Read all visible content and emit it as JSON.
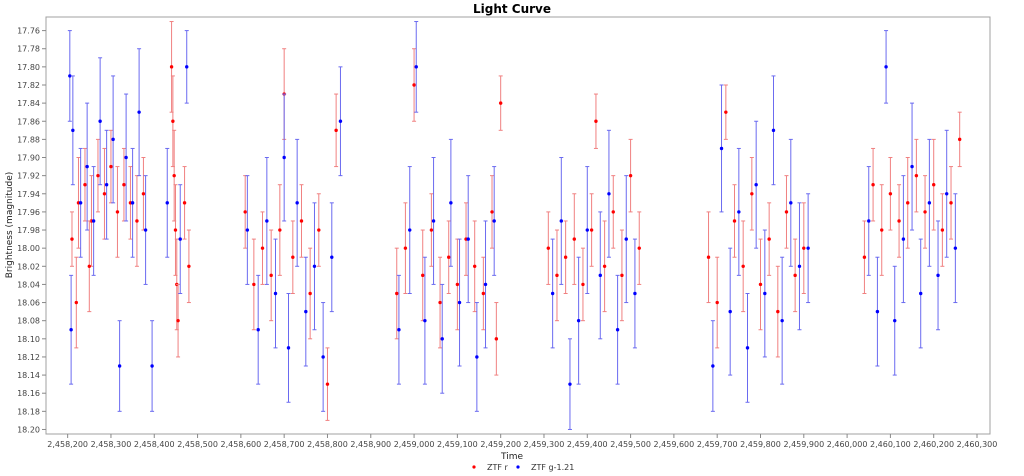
{
  "chart_data": {
    "type": "scatter",
    "title": "Light Curve",
    "xlabel": "Time",
    "ylabel": "Brightness (magnitude)",
    "xlim": [
      2458150,
      2460330
    ],
    "ylim": [
      18.205,
      17.745
    ],
    "y_inverted": true,
    "x_ticks": [
      2458200,
      2458300,
      2458400,
      2458500,
      2458600,
      2458700,
      2458800,
      2458900,
      2459000,
      2459100,
      2459200,
      2459300,
      2459400,
      2459500,
      2459600,
      2459700,
      2459800,
      2459900,
      2460000,
      2460100,
      2460200,
      2460300
    ],
    "x_tick_labels": [
      "2,458,200",
      "2,458,300",
      "2,458,400",
      "2,458,500",
      "2,458,600",
      "2,458,700",
      "2,458,800",
      "2,458,900",
      "2,459,000",
      "2,459,100",
      "2,459,200",
      "2,459,300",
      "2,459,400",
      "2,459,500",
      "2,459,600",
      "2,459,700",
      "2,459,800",
      "2,459,900",
      "2,460,000",
      "2,460,100",
      "2,460,200",
      "2,460,300"
    ],
    "y_ticks": [
      17.76,
      17.78,
      17.8,
      17.82,
      17.84,
      17.86,
      17.88,
      17.9,
      17.92,
      17.94,
      17.96,
      17.98,
      18.0,
      18.02,
      18.04,
      18.06,
      18.08,
      18.1,
      18.12,
      18.14,
      18.16,
      18.18,
      18.2
    ],
    "y_tick_labels": [
      "17.76",
      "17.78",
      "17.80",
      "17.82",
      "17.84",
      "17.86",
      "17.88",
      "17.90",
      "17.92",
      "17.94",
      "17.96",
      "17.98",
      "18.00",
      "18.02",
      "18.04",
      "18.06",
      "18.08",
      "18.10",
      "18.12",
      "18.14",
      "18.16",
      "18.18",
      "18.20"
    ],
    "grid": false,
    "legend_position": "bottom-center",
    "series": [
      {
        "name": "ZTF r",
        "color": "#ff0000",
        "errorbar_color": "#f08080",
        "points": [
          {
            "x": 2458210,
            "y": 17.99,
            "err": 0.03
          },
          {
            "x": 2458225,
            "y": 17.95,
            "err": 0.05
          },
          {
            "x": 2458240,
            "y": 17.93,
            "err": 0.04
          },
          {
            "x": 2458255,
            "y": 17.97,
            "err": 0.05
          },
          {
            "x": 2458270,
            "y": 17.92,
            "err": 0.04
          },
          {
            "x": 2458285,
            "y": 17.94,
            "err": 0.05
          },
          {
            "x": 2458300,
            "y": 17.91,
            "err": 0.04
          },
          {
            "x": 2458315,
            "y": 17.96,
            "err": 0.05
          },
          {
            "x": 2458330,
            "y": 17.93,
            "err": 0.04
          },
          {
            "x": 2458345,
            "y": 17.95,
            "err": 0.04
          },
          {
            "x": 2458360,
            "y": 17.97,
            "err": 0.05
          },
          {
            "x": 2458375,
            "y": 17.94,
            "err": 0.04
          },
          {
            "x": 2458220,
            "y": 18.06,
            "err": 0.05
          },
          {
            "x": 2458250,
            "y": 18.02,
            "err": 0.05
          },
          {
            "x": 2458440,
            "y": 17.8,
            "err": 0.05
          },
          {
            "x": 2458443,
            "y": 17.86,
            "err": 0.05
          },
          {
            "x": 2458446,
            "y": 17.92,
            "err": 0.05
          },
          {
            "x": 2458449,
            "y": 17.98,
            "err": 0.05
          },
          {
            "x": 2458452,
            "y": 18.04,
            "err": 0.05
          },
          {
            "x": 2458455,
            "y": 18.08,
            "err": 0.04
          },
          {
            "x": 2458470,
            "y": 17.95,
            "err": 0.04
          },
          {
            "x": 2458480,
            "y": 18.02,
            "err": 0.04
          },
          {
            "x": 2458610,
            "y": 17.96,
            "err": 0.04
          },
          {
            "x": 2458630,
            "y": 18.04,
            "err": 0.05
          },
          {
            "x": 2458650,
            "y": 18.0,
            "err": 0.04
          },
          {
            "x": 2458670,
            "y": 18.03,
            "err": 0.05
          },
          {
            "x": 2458690,
            "y": 17.98,
            "err": 0.05
          },
          {
            "x": 2458700,
            "y": 17.83,
            "err": 0.05
          },
          {
            "x": 2458720,
            "y": 18.01,
            "err": 0.04
          },
          {
            "x": 2458740,
            "y": 17.97,
            "err": 0.04
          },
          {
            "x": 2458760,
            "y": 18.05,
            "err": 0.05
          },
          {
            "x": 2458780,
            "y": 17.98,
            "err": 0.04
          },
          {
            "x": 2458800,
            "y": 18.15,
            "err": 0.04
          },
          {
            "x": 2458820,
            "y": 17.87,
            "err": 0.04
          },
          {
            "x": 2458960,
            "y": 18.05,
            "err": 0.05
          },
          {
            "x": 2458980,
            "y": 18.0,
            "err": 0.05
          },
          {
            "x": 2459000,
            "y": 17.82,
            "err": 0.04
          },
          {
            "x": 2459020,
            "y": 18.03,
            "err": 0.05
          },
          {
            "x": 2459040,
            "y": 17.98,
            "err": 0.04
          },
          {
            "x": 2459060,
            "y": 18.06,
            "err": 0.05
          },
          {
            "x": 2459080,
            "y": 18.01,
            "err": 0.04
          },
          {
            "x": 2459100,
            "y": 18.04,
            "err": 0.05
          },
          {
            "x": 2459120,
            "y": 17.99,
            "err": 0.04
          },
          {
            "x": 2459140,
            "y": 18.02,
            "err": 0.05
          },
          {
            "x": 2459160,
            "y": 18.05,
            "err": 0.04
          },
          {
            "x": 2459180,
            "y": 17.96,
            "err": 0.04
          },
          {
            "x": 2459200,
            "y": 17.84,
            "err": 0.03
          },
          {
            "x": 2459190,
            "y": 18.1,
            "err": 0.04
          },
          {
            "x": 2459310,
            "y": 18.0,
            "err": 0.04
          },
          {
            "x": 2459330,
            "y": 18.03,
            "err": 0.05
          },
          {
            "x": 2459350,
            "y": 18.01,
            "err": 0.04
          },
          {
            "x": 2459370,
            "y": 17.99,
            "err": 0.05
          },
          {
            "x": 2459390,
            "y": 18.04,
            "err": 0.04
          },
          {
            "x": 2459410,
            "y": 17.98,
            "err": 0.04
          },
          {
            "x": 2459420,
            "y": 17.86,
            "err": 0.03
          },
          {
            "x": 2459440,
            "y": 18.02,
            "err": 0.05
          },
          {
            "x": 2459460,
            "y": 17.96,
            "err": 0.04
          },
          {
            "x": 2459480,
            "y": 18.03,
            "err": 0.05
          },
          {
            "x": 2459500,
            "y": 17.92,
            "err": 0.04
          },
          {
            "x": 2459520,
            "y": 18.0,
            "err": 0.04
          },
          {
            "x": 2459680,
            "y": 18.01,
            "err": 0.05
          },
          {
            "x": 2459700,
            "y": 18.06,
            "err": 0.05
          },
          {
            "x": 2459720,
            "y": 17.85,
            "err": 0.03
          },
          {
            "x": 2459740,
            "y": 17.97,
            "err": 0.04
          },
          {
            "x": 2459760,
            "y": 18.02,
            "err": 0.05
          },
          {
            "x": 2459780,
            "y": 17.94,
            "err": 0.04
          },
          {
            "x": 2459800,
            "y": 18.04,
            "err": 0.05
          },
          {
            "x": 2459820,
            "y": 17.99,
            "err": 0.04
          },
          {
            "x": 2459840,
            "y": 18.07,
            "err": 0.05
          },
          {
            "x": 2459860,
            "y": 17.96,
            "err": 0.04
          },
          {
            "x": 2459880,
            "y": 18.03,
            "err": 0.04
          },
          {
            "x": 2459900,
            "y": 18.0,
            "err": 0.05
          },
          {
            "x": 2460040,
            "y": 18.01,
            "err": 0.04
          },
          {
            "x": 2460060,
            "y": 17.93,
            "err": 0.04
          },
          {
            "x": 2460080,
            "y": 17.98,
            "err": 0.05
          },
          {
            "x": 2460100,
            "y": 17.94,
            "err": 0.04
          },
          {
            "x": 2460120,
            "y": 17.97,
            "err": 0.04
          },
          {
            "x": 2460140,
            "y": 17.95,
            "err": 0.05
          },
          {
            "x": 2460160,
            "y": 17.92,
            "err": 0.04
          },
          {
            "x": 2460180,
            "y": 17.96,
            "err": 0.04
          },
          {
            "x": 2460200,
            "y": 17.93,
            "err": 0.05
          },
          {
            "x": 2460220,
            "y": 17.98,
            "err": 0.04
          },
          {
            "x": 2460240,
            "y": 17.95,
            "err": 0.04
          },
          {
            "x": 2460260,
            "y": 17.88,
            "err": 0.03
          }
        ]
      },
      {
        "name": "ZTF g-1.21",
        "color": "#0000ff",
        "errorbar_color": "#6a6af0",
        "points": [
          {
            "x": 2458205,
            "y": 17.81,
            "err": 0.05
          },
          {
            "x": 2458208,
            "y": 18.09,
            "err": 0.06
          },
          {
            "x": 2458212,
            "y": 17.87,
            "err": 0.06
          },
          {
            "x": 2458230,
            "y": 17.95,
            "err": 0.06
          },
          {
            "x": 2458245,
            "y": 17.91,
            "err": 0.07
          },
          {
            "x": 2458260,
            "y": 17.97,
            "err": 0.06
          },
          {
            "x": 2458275,
            "y": 17.86,
            "err": 0.07
          },
          {
            "x": 2458290,
            "y": 17.93,
            "err": 0.06
          },
          {
            "x": 2458305,
            "y": 17.88,
            "err": 0.07
          },
          {
            "x": 2458320,
            "y": 18.13,
            "err": 0.05
          },
          {
            "x": 2458335,
            "y": 17.9,
            "err": 0.07
          },
          {
            "x": 2458350,
            "y": 17.95,
            "err": 0.06
          },
          {
            "x": 2458365,
            "y": 17.85,
            "err": 0.07
          },
          {
            "x": 2458380,
            "y": 17.98,
            "err": 0.06
          },
          {
            "x": 2458395,
            "y": 18.13,
            "err": 0.05
          },
          {
            "x": 2458430,
            "y": 17.95,
            "err": 0.06
          },
          {
            "x": 2458460,
            "y": 17.99,
            "err": 0.06
          },
          {
            "x": 2458475,
            "y": 17.8,
            "err": 0.04
          },
          {
            "x": 2458615,
            "y": 17.98,
            "err": 0.06
          },
          {
            "x": 2458640,
            "y": 18.09,
            "err": 0.06
          },
          {
            "x": 2458660,
            "y": 17.97,
            "err": 0.07
          },
          {
            "x": 2458680,
            "y": 18.05,
            "err": 0.06
          },
          {
            "x": 2458700,
            "y": 17.9,
            "err": 0.07
          },
          {
            "x": 2458710,
            "y": 18.11,
            "err": 0.06
          },
          {
            "x": 2458730,
            "y": 17.95,
            "err": 0.07
          },
          {
            "x": 2458750,
            "y": 18.07,
            "err": 0.06
          },
          {
            "x": 2458770,
            "y": 18.02,
            "err": 0.07
          },
          {
            "x": 2458790,
            "y": 18.12,
            "err": 0.06
          },
          {
            "x": 2458830,
            "y": 17.86,
            "err": 0.06
          },
          {
            "x": 2458810,
            "y": 18.01,
            "err": 0.06
          },
          {
            "x": 2458965,
            "y": 18.09,
            "err": 0.06
          },
          {
            "x": 2458990,
            "y": 17.98,
            "err": 0.07
          },
          {
            "x": 2459005,
            "y": 17.8,
            "err": 0.05
          },
          {
            "x": 2459025,
            "y": 18.08,
            "err": 0.07
          },
          {
            "x": 2459045,
            "y": 17.97,
            "err": 0.07
          },
          {
            "x": 2459065,
            "y": 18.1,
            "err": 0.06
          },
          {
            "x": 2459085,
            "y": 17.95,
            "err": 0.07
          },
          {
            "x": 2459105,
            "y": 18.06,
            "err": 0.07
          },
          {
            "x": 2459125,
            "y": 17.99,
            "err": 0.07
          },
          {
            "x": 2459145,
            "y": 18.12,
            "err": 0.06
          },
          {
            "x": 2459165,
            "y": 18.04,
            "err": 0.07
          },
          {
            "x": 2459185,
            "y": 17.97,
            "err": 0.06
          },
          {
            "x": 2459320,
            "y": 18.05,
            "err": 0.06
          },
          {
            "x": 2459340,
            "y": 17.97,
            "err": 0.07
          },
          {
            "x": 2459360,
            "y": 18.15,
            "err": 0.05
          },
          {
            "x": 2459380,
            "y": 18.08,
            "err": 0.07
          },
          {
            "x": 2459400,
            "y": 17.98,
            "err": 0.07
          },
          {
            "x": 2459430,
            "y": 18.03,
            "err": 0.07
          },
          {
            "x": 2459450,
            "y": 17.94,
            "err": 0.07
          },
          {
            "x": 2459470,
            "y": 18.09,
            "err": 0.06
          },
          {
            "x": 2459490,
            "y": 17.99,
            "err": 0.07
          },
          {
            "x": 2459510,
            "y": 18.05,
            "err": 0.06
          },
          {
            "x": 2459690,
            "y": 18.13,
            "err": 0.05
          },
          {
            "x": 2459710,
            "y": 17.89,
            "err": 0.07
          },
          {
            "x": 2459730,
            "y": 18.07,
            "err": 0.07
          },
          {
            "x": 2459750,
            "y": 17.96,
            "err": 0.07
          },
          {
            "x": 2459770,
            "y": 18.11,
            "err": 0.06
          },
          {
            "x": 2459790,
            "y": 17.93,
            "err": 0.07
          },
          {
            "x": 2459810,
            "y": 18.05,
            "err": 0.07
          },
          {
            "x": 2459830,
            "y": 17.87,
            "err": 0.06
          },
          {
            "x": 2459850,
            "y": 18.08,
            "err": 0.07
          },
          {
            "x": 2459870,
            "y": 17.95,
            "err": 0.07
          },
          {
            "x": 2459890,
            "y": 18.02,
            "err": 0.07
          },
          {
            "x": 2459910,
            "y": 18.0,
            "err": 0.06
          },
          {
            "x": 2460050,
            "y": 17.97,
            "err": 0.06
          },
          {
            "x": 2460070,
            "y": 18.07,
            "err": 0.06
          },
          {
            "x": 2460090,
            "y": 17.8,
            "err": 0.04
          },
          {
            "x": 2460110,
            "y": 18.08,
            "err": 0.06
          },
          {
            "x": 2460130,
            "y": 17.99,
            "err": 0.07
          },
          {
            "x": 2460150,
            "y": 17.91,
            "err": 0.07
          },
          {
            "x": 2460170,
            "y": 18.05,
            "err": 0.06
          },
          {
            "x": 2460190,
            "y": 17.95,
            "err": 0.07
          },
          {
            "x": 2460210,
            "y": 18.03,
            "err": 0.06
          },
          {
            "x": 2460230,
            "y": 17.94,
            "err": 0.07
          },
          {
            "x": 2460250,
            "y": 18.0,
            "err": 0.06
          }
        ]
      }
    ]
  }
}
